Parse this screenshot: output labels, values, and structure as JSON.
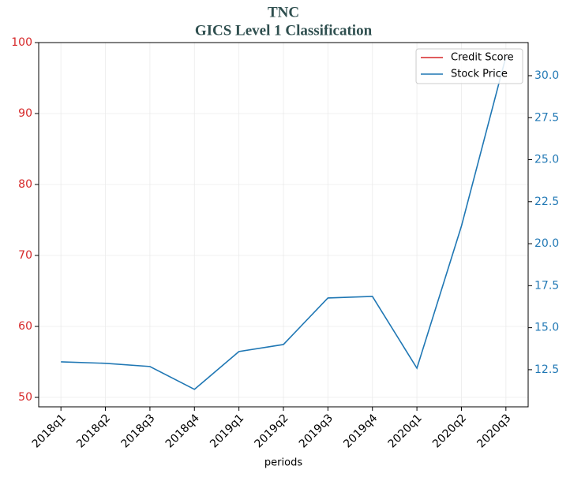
{
  "chart_data": {
    "type": "line",
    "title": "TNC",
    "subtitle": "GICS Level 1 Classification",
    "xlabel": "periods",
    "categories": [
      "2018q1",
      "2018q2",
      "2018q3",
      "2018q4",
      "2019q1",
      "2019q2",
      "2019q3",
      "2019q4",
      "2020q1",
      "2020q2",
      "2020q3"
    ],
    "series": [
      {
        "name": "Credit Score",
        "color": "#d62728",
        "values": [
          null,
          null,
          null,
          null,
          null,
          null,
          null,
          null,
          null,
          null,
          null
        ]
      },
      {
        "name": "Stock Price",
        "color": "#1f77b4",
        "axis": "y2",
        "values": [
          12.97,
          12.88,
          12.69,
          11.33,
          13.58,
          14.0,
          16.77,
          16.86,
          12.59,
          21.04,
          31.13
        ]
      }
    ],
    "ylim": [
      48.67,
      100
    ],
    "yticks": [
      50,
      60,
      70,
      80,
      90,
      100
    ],
    "y2lim": [
      10.29,
      31.97
    ],
    "y2ticks": [
      {
        "value": 12.5,
        "label": "12.5"
      },
      {
        "value": 15,
        "label": "15.0"
      },
      {
        "value": 17.5,
        "label": "17.5"
      },
      {
        "value": 20,
        "label": "20.0"
      },
      {
        "value": 22.5,
        "label": "22.5"
      },
      {
        "value": 25,
        "label": "25.0"
      },
      {
        "value": 27.5,
        "label": "27.5"
      },
      {
        "value": 30,
        "label": "30.0"
      }
    ],
    "ycolor": "#d62728",
    "y2color": "#1f77b4",
    "grid": true,
    "legend": "upper right"
  }
}
